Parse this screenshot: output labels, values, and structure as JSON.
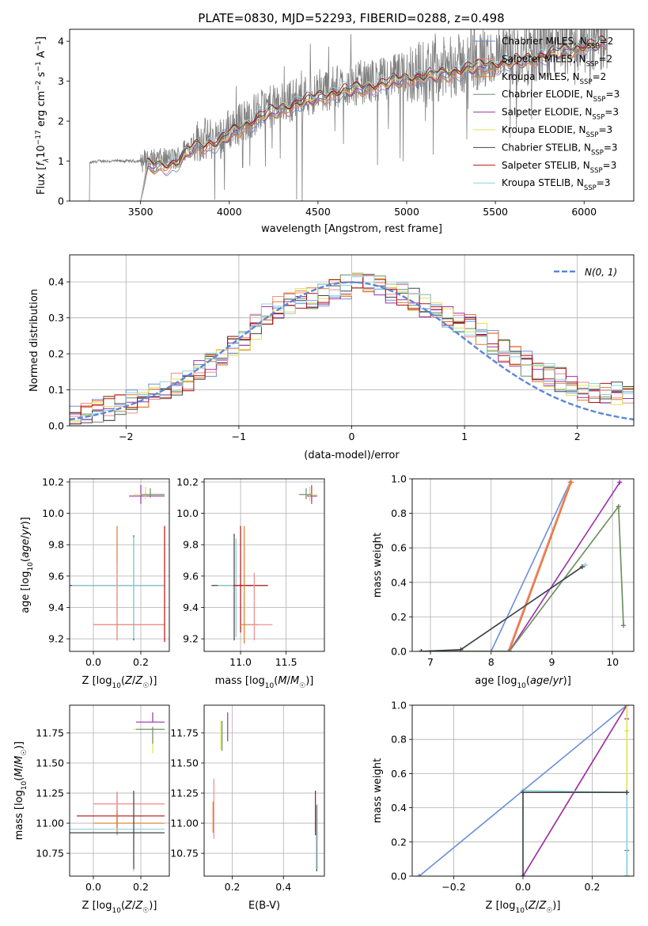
{
  "figure": {
    "title": "PLATE=0830, MJD=52293, FIBERID=0288, z=0.498"
  },
  "colors": {
    "chabrier_miles": "#6a8fd8",
    "salpeter_miles": "#f08a8a",
    "kroupa_miles": "#e07b2a",
    "chabrier_elodie": "#6b8e6b",
    "salpeter_elodie": "#9b30a8",
    "kroupa_elodie": "#e3e055",
    "chabrier_stelib": "#444444",
    "salpeter_stelib": "#b01010",
    "kroupa_stelib": "#8fd0e0",
    "data": "#808080",
    "gauss": "#5b87d6"
  },
  "chart_data": [
    {
      "id": "spectrum",
      "type": "line",
      "title": "PLATE=0830, MJD=52293, FIBERID=0288, z=0.498",
      "xlabel": "wavelength [Angstrom, rest frame]",
      "ylabel": "Flux [f_λ 10^-17 erg cm^-2 s^-1 A^-1]",
      "xlim": [
        3100,
        6280
      ],
      "ylim": [
        0,
        4.3
      ],
      "xticks": [
        3500,
        4000,
        4500,
        5000,
        5500,
        6000
      ],
      "yticks": [
        0,
        1,
        2,
        3,
        4
      ],
      "legend_position": "top-right",
      "legend": [
        {
          "name": "Chabrier MILES, N_SSP=2",
          "pre": "Chabrier MILES, N",
          "sub": "SSP",
          "post": "=2",
          "color": "#6a8fd8"
        },
        {
          "name": "Salpeter MILES, N_SSP=2",
          "pre": "Salpeter MILES, N",
          "sub": "SSP",
          "post": "=2",
          "color": "#f08a8a"
        },
        {
          "name": "Kroupa MILES, N_SSP=2",
          "pre": "Kroupa MILES, N",
          "sub": "SSP",
          "post": "=2",
          "color": "#e07b2a"
        },
        {
          "name": "Chabrier ELODIE, N_SSP=3",
          "pre": "Chabrier ELODIE, N",
          "sub": "SSP",
          "post": "=3",
          "color": "#6b8e6b"
        },
        {
          "name": "Salpeter ELODIE, N_SSP=3",
          "pre": "Salpeter ELODIE, N",
          "sub": "SSP",
          "post": "=3",
          "color": "#9b30a8"
        },
        {
          "name": "Kroupa ELODIE, N_SSP=3",
          "pre": "Kroupa ELODIE, N",
          "sub": "SSP",
          "post": "=3",
          "color": "#e3e055"
        },
        {
          "name": "Chabrier STELIB, N_SSP=3",
          "pre": "Chabrier STELIB, N",
          "sub": "SSP",
          "post": "=3",
          "color": "#444444"
        },
        {
          "name": "Salpeter STELIB, N_SSP=3",
          "pre": "Salpeter STELIB, N",
          "sub": "SSP",
          "post": "=3",
          "color": "#b01010"
        },
        {
          "name": "Kroupa STELIB, N_SSP=3",
          "pre": "Kroupa STELIB, N",
          "sub": "SSP",
          "post": "=3",
          "color": "#8fd0e0"
        }
      ],
      "data_envelope": {
        "x": [
          3210,
          3260,
          3500,
          3700,
          3800,
          3950,
          4000,
          4200,
          4400,
          4600,
          4800,
          5000,
          5200,
          5400,
          5600,
          5800,
          6000,
          6130
        ],
        "y": [
          0.95,
          1.0,
          1.0,
          1.05,
          1.5,
          1.6,
          1.8,
          2.3,
          2.6,
          2.85,
          3.0,
          3.2,
          3.3,
          3.5,
          3.6,
          3.8,
          4.0,
          4.1
        ]
      },
      "model_range": [
        3500,
        6130
      ]
    },
    {
      "id": "residuals",
      "type": "histogram",
      "xlabel": "(data-model)/error",
      "ylabel": "Normed distribution",
      "xlim": [
        -2.5,
        2.5
      ],
      "ylim": [
        0,
        0.475
      ],
      "xticks": [
        -2,
        -1,
        0,
        1,
        2
      ],
      "yticks": [
        0.0,
        0.1,
        0.2,
        0.3,
        0.4
      ],
      "bin_width": 0.1,
      "base_profile": {
        "x": [
          -2.5,
          -2.3,
          -2.1,
          -1.9,
          -1.7,
          -1.5,
          -1.3,
          -1.1,
          -0.9,
          -0.7,
          -0.5,
          -0.3,
          -0.1,
          0.1,
          0.3,
          0.5,
          0.7,
          0.9,
          1.1,
          1.3,
          1.5,
          1.7,
          1.9,
          2.1,
          2.3,
          2.5
        ],
        "y": [
          0.03,
          0.04,
          0.05,
          0.07,
          0.1,
          0.12,
          0.16,
          0.2,
          0.26,
          0.32,
          0.35,
          0.36,
          0.38,
          0.4,
          0.38,
          0.36,
          0.33,
          0.3,
          0.27,
          0.22,
          0.18,
          0.15,
          0.12,
          0.1,
          0.09,
          0.08
        ]
      },
      "gauss_legend": "N(0, 1)",
      "gauss_legend_position": "top-right"
    },
    {
      "id": "age_vs_Z",
      "type": "errorbar",
      "xlabel": "Z [log10(Z/Z☉)]",
      "ylabel": "age [log10(age/yr)]",
      "xlim": [
        -0.1,
        0.32
      ],
      "ylim": [
        9.12,
        10.22
      ],
      "xticks": [
        0.0,
        0.2
      ],
      "yticks": [
        9.2,
        9.4,
        9.6,
        9.8,
        10.0,
        10.2
      ],
      "points": [
        {
          "x": 0.2,
          "y": 10.11,
          "xerr": [
            0.05,
            0.1
          ],
          "yerr": [
            0.05,
            0.07
          ],
          "color": "#9b30a8"
        },
        {
          "x": 0.22,
          "y": 10.12,
          "xerr": [
            0.05,
            0.08
          ],
          "yerr": [
            0.03,
            0.05
          ],
          "color": "#e3e055"
        },
        {
          "x": 0.24,
          "y": 10.12,
          "xerr": [
            0.04,
            0.06
          ],
          "yerr": [
            0.02,
            0.04
          ],
          "color": "#6b8e6b"
        },
        {
          "x": 0.17,
          "y": 9.54,
          "xerr": [
            0.27,
            0.13
          ],
          "yerr": [
            0.35,
            0.32
          ],
          "color": "#444444"
        },
        {
          "x": 0.17,
          "y": 9.54,
          "xerr": [
            0.26,
            0.13
          ],
          "yerr": [
            0.34,
            0.31
          ],
          "color": "#8fd0e0"
        },
        {
          "x": 0.1,
          "y": 9.29,
          "xerr": [
            0.1,
            0.2
          ],
          "yerr": [
            0.1,
            0.63
          ],
          "color": "#e07b2a"
        },
        {
          "x": 0.1,
          "y": 9.29,
          "xerr": [
            0.1,
            0.2
          ],
          "yerr": [
            0.1,
            0.4
          ],
          "color": "#f08a8a"
        },
        {
          "x": 0.3,
          "y": 9.6,
          "xerr": [
            0.0,
            0.0
          ],
          "yerr": [
            0.42,
            0.32
          ],
          "color": "#b01010"
        }
      ]
    },
    {
      "id": "age_vs_mass",
      "type": "errorbar",
      "xlabel": "mass [log10(M/M☉)]",
      "ylabel": "",
      "xlim": [
        10.6,
        11.92
      ],
      "ylim": [
        9.12,
        10.22
      ],
      "xticks": [
        11.0,
        11.5
      ],
      "yticks": [
        9.2,
        9.4,
        9.6,
        9.8,
        10.0,
        10.2
      ],
      "points": [
        {
          "x": 11.78,
          "y": 10.11,
          "xerr": [
            0.05,
            0.06
          ],
          "yerr": [
            0.05,
            0.07
          ],
          "color": "#9b30a8"
        },
        {
          "x": 11.76,
          "y": 10.12,
          "xerr": [
            0.1,
            0.08
          ],
          "yerr": [
            0.04,
            0.05
          ],
          "color": "#e3e055"
        },
        {
          "x": 11.72,
          "y": 10.12,
          "xerr": [
            0.08,
            0.06
          ],
          "yerr": [
            0.03,
            0.04
          ],
          "color": "#6b8e6b"
        },
        {
          "x": 10.93,
          "y": 9.54,
          "xerr": [
            0.25,
            0.2
          ],
          "yerr": [
            0.35,
            0.33
          ],
          "color": "#444444"
        },
        {
          "x": 10.95,
          "y": 9.54,
          "xerr": [
            0.2,
            0.2
          ],
          "yerr": [
            0.33,
            0.3
          ],
          "color": "#8fd0e0"
        },
        {
          "x": 11.0,
          "y": 9.54,
          "xerr": [
            0.08,
            0.3
          ],
          "yerr": [
            0.3,
            0.38
          ],
          "color": "#b01010"
        },
        {
          "x": 11.04,
          "y": 9.29,
          "xerr": [
            0.05,
            0.15
          ],
          "yerr": [
            0.12,
            0.63
          ],
          "color": "#e07b2a"
        },
        {
          "x": 11.15,
          "y": 9.29,
          "xerr": [
            0.1,
            0.2
          ],
          "yerr": [
            0.1,
            0.33
          ],
          "color": "#f08a8a"
        }
      ]
    },
    {
      "id": "cum_age",
      "type": "line",
      "xlabel": "age [log10(age/yr)]",
      "ylabel": "mass weight",
      "xlim": [
        6.7,
        10.35
      ],
      "ylim": [
        0,
        1.0
      ],
      "xticks": [
        7,
        8,
        9,
        10
      ],
      "yticks": [
        0.0,
        0.2,
        0.4,
        0.6,
        0.8,
        1.0
      ],
      "series": [
        {
          "color": "#6a8fd8",
          "x": [
            6.85,
            8.0,
            9.3
          ],
          "y": [
            0,
            0,
            0.98
          ]
        },
        {
          "color": "#f08a8a",
          "x": [
            6.85,
            8.28,
            9.3
          ],
          "y": [
            0,
            0,
            0.98
          ]
        },
        {
          "color": "#e07b2a",
          "x": [
            6.85,
            8.3,
            9.32
          ],
          "y": [
            0,
            0,
            0.98
          ]
        },
        {
          "color": "#9b30a8",
          "x": [
            6.85,
            8.3,
            10.12
          ],
          "y": [
            0,
            0,
            0.98
          ]
        },
        {
          "color": "#e3e055",
          "x": [
            6.85,
            8.3,
            10.1,
            10.18
          ],
          "y": [
            0,
            0,
            0.84,
            0.15
          ]
        },
        {
          "color": "#6b8e6b",
          "x": [
            6.85,
            8.3,
            10.1,
            10.18
          ],
          "y": [
            0,
            0,
            0.84,
            0.15
          ]
        },
        {
          "color": "#8fd0e0",
          "x": [
            6.85,
            7.5,
            9.55
          ],
          "y": [
            0,
            0.01,
            0.5
          ]
        },
        {
          "color": "#444444",
          "x": [
            6.85,
            7.5,
            9.5
          ],
          "y": [
            0,
            0.01,
            0.49
          ]
        }
      ]
    },
    {
      "id": "mass_vs_Z",
      "type": "errorbar",
      "xlabel": "Z [log10(Z/Z☉)]",
      "ylabel": "mass [log10(M/M☉)]",
      "xlim": [
        -0.1,
        0.32
      ],
      "ylim": [
        10.56,
        11.98
      ],
      "xticks": [
        0.0,
        0.2
      ],
      "yticks": [
        10.75,
        11.0,
        11.25,
        11.5,
        11.75
      ],
      "points": [
        {
          "x": 0.25,
          "y": 11.84,
          "xerr": [
            0.07,
            0.05
          ],
          "yerr": [
            0.0,
            0.08
          ],
          "color": "#9b30a8"
        },
        {
          "x": 0.25,
          "y": 11.78,
          "xerr": [
            0.08,
            0.05
          ],
          "yerr": [
            0.2,
            0.02
          ],
          "color": "#e3e055"
        },
        {
          "x": 0.25,
          "y": 11.78,
          "xerr": [
            0.07,
            0.05
          ],
          "yerr": [
            0.12,
            0.02
          ],
          "color": "#6b8e6b"
        },
        {
          "x": 0.1,
          "y": 11.06,
          "xerr": [
            0.17,
            0.2
          ],
          "yerr": [
            0.1,
            0.2
          ],
          "color": "#b01010"
        },
        {
          "x": 0.1,
          "y": 11.16,
          "xerr": [
            0.1,
            0.2
          ],
          "yerr": [
            0.2,
            0.1
          ],
          "color": "#f08a8a"
        },
        {
          "x": 0.1,
          "y": 11.0,
          "xerr": [
            0.1,
            0.2
          ],
          "yerr": [
            0.1,
            0.1
          ],
          "color": "#e07b2a"
        },
        {
          "x": 0.17,
          "y": 10.95,
          "xerr": [
            0.27,
            0.13
          ],
          "yerr": [
            0.35,
            0.3
          ],
          "color": "#8fd0e0"
        },
        {
          "x": 0.17,
          "y": 10.92,
          "xerr": [
            0.27,
            0.13
          ],
          "yerr": [
            0.3,
            0.35
          ],
          "color": "#444444"
        }
      ]
    },
    {
      "id": "mass_vs_ebv",
      "type": "errorbar",
      "xlabel": "E(B-V)",
      "ylabel": "",
      "xlim": [
        0.09,
        0.56
      ],
      "ylim": [
        10.56,
        11.98
      ],
      "xticks": [
        0.2,
        0.4
      ],
      "yticks": [
        10.75,
        11.0,
        11.25,
        11.5,
        11.75
      ],
      "points": [
        {
          "x": 0.182,
          "y": 11.76,
          "xerr": [
            0,
            0
          ],
          "yerr": [
            0.08,
            0.16
          ],
          "color": "#9b30a8"
        },
        {
          "x": 0.155,
          "y": 11.73,
          "xerr": [
            0,
            0
          ],
          "yerr": [
            0.12,
            0.12
          ],
          "color": "#e3e055"
        },
        {
          "x": 0.16,
          "y": 11.72,
          "xerr": [
            0,
            0
          ],
          "yerr": [
            0.12,
            0.13
          ],
          "color": "#6b8e6b"
        },
        {
          "x": 0.128,
          "y": 11.15,
          "xerr": [
            0,
            0
          ],
          "yerr": [
            0.28,
            0.22
          ],
          "color": "#f08a8a"
        },
        {
          "x": 0.125,
          "y": 11.02,
          "xerr": [
            0,
            0
          ],
          "yerr": [
            0.1,
            0.16
          ],
          "color": "#e07b2a"
        },
        {
          "x": 0.525,
          "y": 11.1,
          "xerr": [
            0,
            0
          ],
          "yerr": [
            0.2,
            0.17
          ],
          "color": "#b01010"
        },
        {
          "x": 0.53,
          "y": 10.9,
          "xerr": [
            0,
            0
          ],
          "yerr": [
            0.3,
            0.25
          ],
          "color": "#444444"
        },
        {
          "x": 0.532,
          "y": 10.9,
          "xerr": [
            0,
            0
          ],
          "yerr": [
            0.28,
            0.26
          ],
          "color": "#8fd0e0"
        }
      ]
    },
    {
      "id": "cum_Z",
      "type": "line",
      "xlabel": "Z [log10(Z/Z☉)]",
      "ylabel": "mass weight",
      "xlim": [
        -0.32,
        0.32
      ],
      "ylim": [
        0,
        1.0
      ],
      "xticks": [
        -0.2,
        0.0,
        0.2
      ],
      "yticks": [
        0.0,
        0.2,
        0.4,
        0.6,
        0.8,
        1.0
      ],
      "series": [
        {
          "color": "#6a8fd8",
          "x": [
            -0.3,
            0.0,
            0.3
          ],
          "y": [
            0,
            0.5,
            1.0
          ]
        },
        {
          "color": "#f08a8a",
          "x": [
            0.0,
            0.3,
            0.3
          ],
          "y": [
            0,
            1.0,
            1.0
          ]
        },
        {
          "color": "#9b30a8",
          "x": [
            0.0,
            0.3,
            0.3
          ],
          "y": [
            0,
            1.0,
            0.92
          ]
        },
        {
          "color": "#e3e055",
          "x": [
            0.3,
            0.3,
            0.3
          ],
          "y": [
            0,
            0.85,
            1.0
          ]
        },
        {
          "color": "#6b8e6b",
          "x": [
            0.3,
            0.3
          ],
          "y": [
            0,
            0.15
          ]
        },
        {
          "color": "#8fd0e0",
          "x": [
            0.0,
            0.0,
            0.3,
            0.3
          ],
          "y": [
            0,
            0.5,
            0.49,
            0
          ]
        },
        {
          "color": "#444444",
          "x": [
            0.0,
            0.0,
            0.3
          ],
          "y": [
            0,
            0.49,
            0.49
          ]
        }
      ]
    }
  ]
}
